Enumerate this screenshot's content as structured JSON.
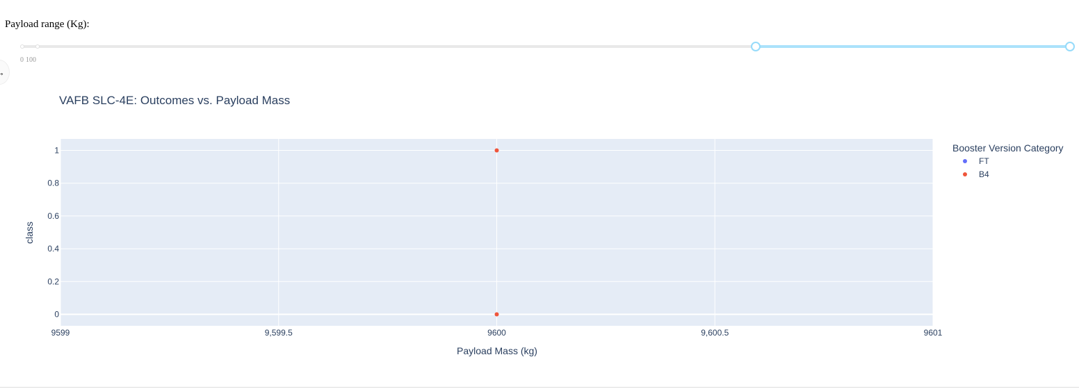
{
  "payload_slider": {
    "label": "Payload range (Kg):",
    "min": 0,
    "max": 10000,
    "value": [
      7000,
      10000
    ],
    "marks": [
      "0",
      "100"
    ]
  },
  "toggle_icon": "arrow-right-icon",
  "toggle_glyph": "→",
  "colors": {
    "plot_bg": "#E5ECF6",
    "grid": "#ffffff",
    "text": "#2a3f5f",
    "FT": "#636efa",
    "B4": "#EF553B",
    "slider_track": "#abe2fb",
    "slider_handle": "#96dbfa"
  },
  "chart_data": {
    "type": "scatter",
    "title": "VAFB SLC-4E: Outcomes vs. Payload Mass",
    "xlabel": "Payload Mass (kg)",
    "ylabel": "class",
    "xlim": [
      9599,
      9601
    ],
    "ylim": [
      -0.07,
      1.07
    ],
    "x_ticks": [
      9599,
      9599.5,
      9600,
      9600.5,
      9601
    ],
    "x_tick_labels": [
      "9599",
      "9,599.5",
      "9600",
      "9,600.5",
      "9601"
    ],
    "y_ticks": [
      0,
      0.2,
      0.4,
      0.6,
      0.8,
      1
    ],
    "y_tick_labels": [
      "0",
      "0.2",
      "0.4",
      "0.6",
      "0.8",
      "1"
    ],
    "grid": true,
    "legend": {
      "title": "Booster Version Category",
      "position": "right"
    },
    "series": [
      {
        "name": "FT",
        "color": "#636efa",
        "points": []
      },
      {
        "name": "B4",
        "color": "#EF553B",
        "points": [
          {
            "x": 9600,
            "y": 1
          },
          {
            "x": 9600,
            "y": 0
          }
        ]
      }
    ]
  }
}
